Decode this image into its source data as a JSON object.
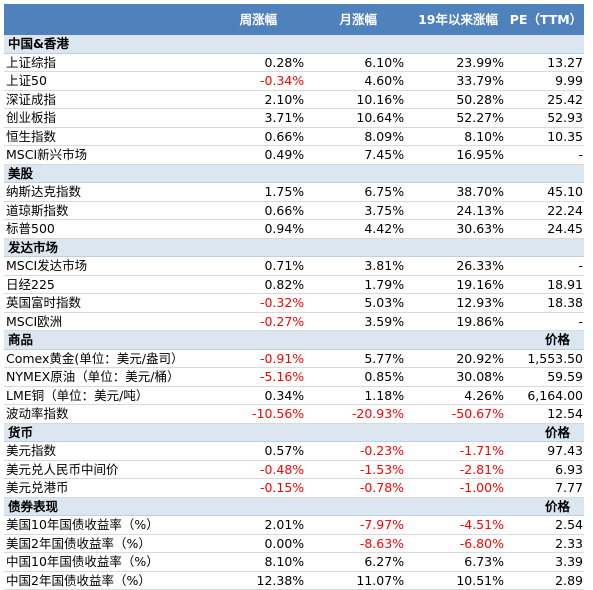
{
  "header": [
    "周涨幅",
    "月涨幅",
    "19年以来涨幅",
    "PE（TTM）"
  ],
  "sections": [
    {
      "title": "中国&香港",
      "extra": "",
      "rows": [
        [
          "上证综指",
          "0.28%",
          "6.10%",
          "23.99%",
          "13.27"
        ],
        [
          "上证50",
          "-0.34%",
          "4.60%",
          "33.79%",
          "9.99"
        ],
        [
          "深证成指",
          "2.10%",
          "10.16%",
          "50.28%",
          "25.42"
        ],
        [
          "创业板指",
          "3.71%",
          "10.64%",
          "52.27%",
          "52.93"
        ],
        [
          "恒生指数",
          "0.66%",
          "8.09%",
          "8.10%",
          "10.35"
        ],
        [
          "MSCI新兴市场",
          "0.49%",
          "7.45%",
          "16.95%",
          "-"
        ]
      ]
    },
    {
      "title": "美股",
      "extra": "",
      "rows": [
        [
          "纳斯达克指数",
          "1.75%",
          "6.75%",
          "38.70%",
          "45.10"
        ],
        [
          "道琼斯指数",
          "0.66%",
          "3.75%",
          "24.13%",
          "22.24"
        ],
        [
          "标普500",
          "0.94%",
          "4.42%",
          "30.63%",
          "24.45"
        ]
      ]
    },
    {
      "title": "发达市场",
      "extra": "",
      "rows": [
        [
          "MSCI发达市场",
          "0.71%",
          "3.81%",
          "26.33%",
          "-"
        ],
        [
          "日经225",
          "0.82%",
          "1.79%",
          "19.16%",
          "18.91"
        ],
        [
          "英国富时指数",
          "-0.32%",
          "5.03%",
          "12.93%",
          "18.38"
        ],
        [
          "MSCI欧洲",
          "-0.27%",
          "3.59%",
          "19.86%",
          "-"
        ]
      ]
    },
    {
      "title": "商品",
      "extra": "价格",
      "rows": [
        [
          "Comex黄金(单位：美元/盎司）",
          "-0.91%",
          "5.77%",
          "20.92%",
          "1,553.50"
        ],
        [
          "NYMEX原油（单位：美元/桶）",
          "-5.16%",
          "0.85%",
          "30.08%",
          "59.59"
        ],
        [
          "LME铜（单位：美元/吨）",
          "0.34%",
          "1.18%",
          "4.26%",
          "6,164.00"
        ],
        [
          "波动率指数",
          "-10.56%",
          "-20.93%",
          "-50.67%",
          "12.54"
        ]
      ]
    },
    {
      "title": "货币",
      "extra": "价格",
      "rows": [
        [
          "美元指数",
          "0.57%",
          "-0.23%",
          "-1.71%",
          "97.43"
        ],
        [
          "美元兑人民币中间价",
          "-0.48%",
          "-1.53%",
          "-2.81%",
          "6.93"
        ],
        [
          "美元兑港币",
          "-0.15%",
          "-0.78%",
          "-1.00%",
          "7.77"
        ]
      ]
    },
    {
      "title": "债券表现",
      "extra": "价格",
      "rows": [
        [
          "美国10年国债收益率（%）",
          "2.01%",
          "-7.97%",
          "-4.51%",
          "2.54"
        ],
        [
          "美国2年国债收益率（%）",
          "0.00%",
          "-8.63%",
          "-6.80%",
          "2.33"
        ],
        [
          "中国10年国债收益率（%）",
          "8.10%",
          "6.27%",
          "6.73%",
          "3.39"
        ],
        [
          "中国2年国债收益率（%）",
          "12.38%",
          "11.07%",
          "10.51%",
          "2.89"
        ]
      ]
    }
  ],
  "colors": {
    "header_bg": "#4f81bd",
    "section_bg": "#dce6f1",
    "negative": "#ff0000"
  }
}
